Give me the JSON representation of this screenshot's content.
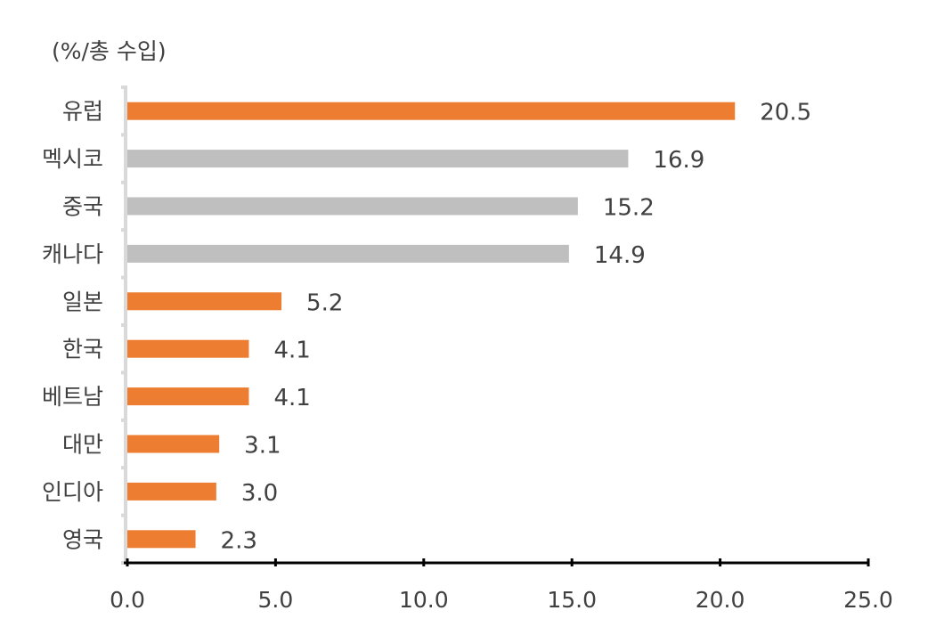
{
  "chart_data": {
    "type": "bar",
    "orientation": "horizontal",
    "unit_label": "(%/총 수입)",
    "categories": [
      "유럽",
      "멕시코",
      "중국",
      "캐나다",
      "일본",
      "한국",
      "베트남",
      "대만",
      "인디아",
      "영국"
    ],
    "values": [
      20.5,
      16.9,
      15.2,
      14.9,
      5.2,
      4.1,
      4.1,
      3.1,
      3.0,
      2.3
    ],
    "value_labels": [
      "20.5",
      "16.9",
      "15.2",
      "14.9",
      "5.2",
      "4.1",
      "4.1",
      "3.1",
      "3.0",
      "2.3"
    ],
    "bar_colors": [
      "#ED7D31",
      "#BFBFBF",
      "#BFBFBF",
      "#BFBFBF",
      "#ED7D31",
      "#ED7D31",
      "#ED7D31",
      "#ED7D31",
      "#ED7D31",
      "#ED7D31"
    ],
    "xlim": [
      0,
      25
    ],
    "x_ticks": [
      0,
      5,
      10,
      15,
      20,
      25
    ],
    "x_tick_labels": [
      "0.0",
      "5.0",
      "10.0",
      "15.0",
      "20.0",
      "25.0"
    ],
    "title": "",
    "xlabel": "",
    "ylabel": "",
    "grid": false,
    "legend": "none"
  }
}
